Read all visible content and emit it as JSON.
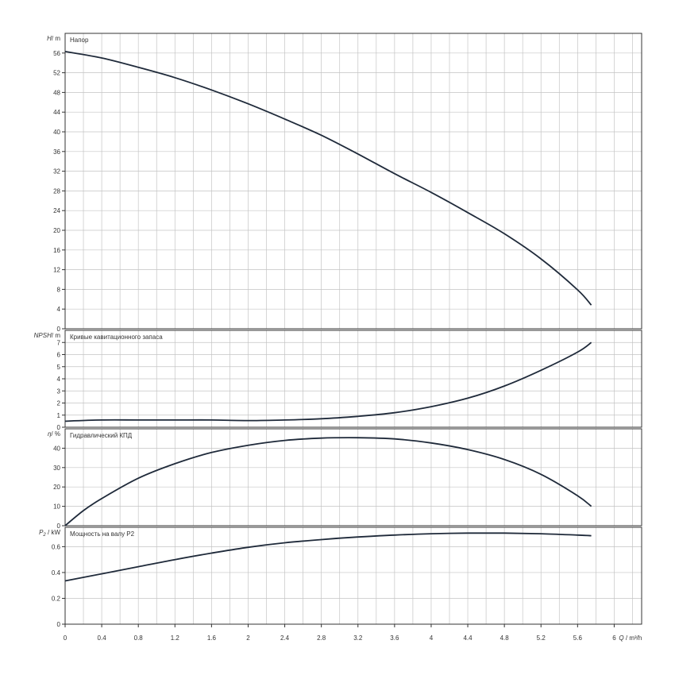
{
  "chart_data": [
    {
      "type": "line",
      "title": "Напор",
      "ylabel_symbol": "H",
      "ylabel_unit": "m",
      "ylim": [
        0,
        60
      ],
      "yticks": [
        "0",
        "4",
        "8",
        "12",
        "16",
        "20",
        "24",
        "28",
        "32",
        "36",
        "40",
        "44",
        "48",
        "52",
        "56"
      ],
      "series": [
        {
          "x": [
            0,
            0.4,
            0.8,
            1.2,
            1.6,
            2.0,
            2.4,
            2.8,
            3.2,
            3.6,
            4.0,
            4.4,
            4.8,
            5.2,
            5.6,
            5.75
          ],
          "y": [
            56.3,
            55.0,
            53.1,
            51.0,
            48.5,
            45.7,
            42.6,
            39.3,
            35.5,
            31.5,
            27.7,
            23.6,
            19.3,
            14.2,
            7.9,
            4.8
          ]
        }
      ]
    },
    {
      "type": "line",
      "title": "Кривые кавитационного запаса",
      "ylabel_symbol": "NPSH",
      "ylabel_unit": "m",
      "ylim": [
        0,
        8
      ],
      "yticks": [
        "0",
        "1",
        "2",
        "3",
        "4",
        "5",
        "6",
        "7"
      ],
      "series": [
        {
          "x": [
            0,
            0.4,
            0.8,
            1.2,
            1.6,
            2.0,
            2.4,
            2.8,
            3.2,
            3.6,
            4.0,
            4.4,
            4.8,
            5.2,
            5.6,
            5.75
          ],
          "y": [
            0.5,
            0.6,
            0.6,
            0.6,
            0.6,
            0.55,
            0.6,
            0.7,
            0.9,
            1.2,
            1.7,
            2.4,
            3.4,
            4.7,
            6.2,
            7.0
          ]
        }
      ]
    },
    {
      "type": "line",
      "title": "Гидравлический КПД",
      "ylabel_symbol": "η",
      "ylabel_unit": "%",
      "ylim": [
        0,
        50
      ],
      "yticks": [
        "0",
        "10",
        "20",
        "30",
        "40"
      ],
      "series": [
        {
          "x": [
            0,
            0.2,
            0.4,
            0.8,
            1.2,
            1.6,
            2.0,
            2.4,
            2.8,
            3.2,
            3.6,
            4.0,
            4.4,
            4.8,
            5.2,
            5.6,
            5.75
          ],
          "y": [
            0,
            7.8,
            14.0,
            24.5,
            32.0,
            37.8,
            41.5,
            44.0,
            45.2,
            45.4,
            44.8,
            42.7,
            39.3,
            34.2,
            26.5,
            15.5,
            10.0
          ]
        }
      ]
    },
    {
      "type": "line",
      "title": "Мощность на валу P2",
      "ylabel_symbol": "P",
      "ylabel_sub": "2",
      "ylabel_unit": "kW",
      "ylim": [
        0,
        0.75
      ],
      "yticks": [
        "0",
        "0.2",
        "0.4",
        "0.6"
      ],
      "series": [
        {
          "x": [
            0,
            0.4,
            0.8,
            1.2,
            1.6,
            2.0,
            2.4,
            2.8,
            3.2,
            3.6,
            4.0,
            4.4,
            4.8,
            5.2,
            5.6,
            5.75
          ],
          "y": [
            0.335,
            0.39,
            0.445,
            0.5,
            0.55,
            0.595,
            0.63,
            0.655,
            0.675,
            0.69,
            0.7,
            0.705,
            0.705,
            0.7,
            0.69,
            0.685
          ]
        }
      ]
    }
  ],
  "x_axis": {
    "label": "Q",
    "unit": "m³/h",
    "xlim": [
      0,
      6.3
    ],
    "ticks": [
      "0",
      "0.4",
      "0.8",
      "1.2",
      "1.6",
      "2",
      "2.4",
      "2.8",
      "3.2",
      "3.6",
      "4",
      "4.4",
      "4.8",
      "5.2",
      "5.6",
      "6"
    ]
  }
}
